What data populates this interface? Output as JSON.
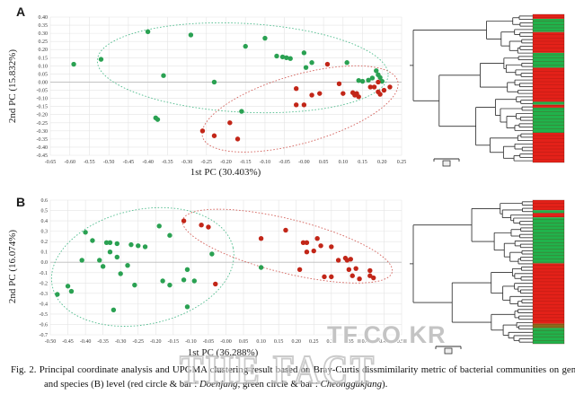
{
  "figure_label": "Fig. 2.",
  "caption": {
    "prefix": "Fig. 2.",
    "body1": " Principal coordinate analysis and UPGMA clustering result based on Bray-Curtis dissmimilarity metric of bacterial communities on genus (A) and species (B) level (red circle & bar : ",
    "italic1": "Doenjang",
    "body2": ", green circle & bar : ",
    "italic2": "Cheonggukjang",
    "suffix": ").",
    "full_text": "Fig. 2. Principal coordinate analysis and UPGMA clustering result based on Bray-Curtis dissmimilarity metric of bacterial communities on genus (A) and species (B) level (red circle & bar : Doenjang, green circle & bar : Cheonggukjang)."
  },
  "watermarks": {
    "site": "TF.CO.KR",
    "brand": "THE FACT"
  },
  "colors": {
    "doenjang": "#c22618",
    "cheonggukjang": "#2aa152",
    "ellipse_red": "#d4625c",
    "ellipse_green": "#52bd8f",
    "bar_red": "#e32119",
    "bar_green": "#21b24b",
    "bar_olive": "#8a6d1b",
    "grid": "#e4e4e4",
    "zero_line": "#bcbcbc",
    "tick_text": "#3a3a3a",
    "tree": "#2f2f2f"
  },
  "chart_data": [
    {
      "panel_label": "A",
      "type": "scatter",
      "level": "genus",
      "xlabel": "1st PC (30.403%)",
      "ylabel": "2nd PC (15.832%)",
      "xlim": [
        -0.65,
        0.25
      ],
      "ylim": [
        -0.45,
        0.4
      ],
      "xticks": [
        "-0.65",
        "-0.60",
        "-0.55",
        "-0.50",
        "-0.45",
        "-0.40",
        "-0.35",
        "-0.30",
        "-0.25",
        "-0.20",
        "-0.15",
        "-0.10",
        "-0.05",
        "-0.00",
        "0.05",
        "0.10",
        "0.15",
        "0.20",
        "0.25"
      ],
      "yticks": [
        "0.40",
        "0.35",
        "0.30",
        "0.25",
        "0.20",
        "0.15",
        "0.10",
        "0.05",
        "0.00",
        "-0.05",
        "-0.10",
        "-0.15",
        "-0.20",
        "-0.25",
        "-0.30",
        "-0.35",
        "-0.40",
        "-0.45"
      ],
      "grid": true,
      "series": [
        {
          "name": "Cheonggukjang",
          "color_key": "cheonggukjang",
          "points": [
            [
              -0.59,
              0.11
            ],
            [
              -0.52,
              0.14
            ],
            [
              -0.4,
              0.31
            ],
            [
              -0.29,
              0.29
            ],
            [
              -0.36,
              0.04
            ],
            [
              -0.23,
              0.0
            ],
            [
              -0.38,
              -0.22
            ],
            [
              -0.375,
              -0.23
            ],
            [
              -0.16,
              -0.18
            ],
            [
              -0.1,
              0.27
            ],
            [
              -0.15,
              0.22
            ],
            [
              -0.07,
              0.16
            ],
            [
              -0.055,
              0.155
            ],
            [
              -0.045,
              0.15
            ],
            [
              -0.035,
              0.145
            ],
            [
              0.0,
              0.18
            ],
            [
              0.02,
              0.12
            ],
            [
              0.005,
              0.09
            ],
            [
              0.11,
              0.12
            ],
            [
              0.14,
              0.01
            ],
            [
              0.15,
              0.005
            ],
            [
              0.165,
              0.012
            ],
            [
              0.175,
              0.025
            ],
            [
              0.185,
              0.07
            ],
            [
              0.19,
              0.045
            ],
            [
              0.195,
              0.028
            ],
            [
              0.2,
              0.005
            ]
          ]
        },
        {
          "name": "Doenjang",
          "color_key": "doenjang",
          "points": [
            [
              -0.26,
              -0.3
            ],
            [
              -0.23,
              -0.33
            ],
            [
              -0.19,
              -0.25
            ],
            [
              -0.17,
              -0.35
            ],
            [
              0.06,
              0.11
            ],
            [
              -0.02,
              -0.04
            ],
            [
              0.02,
              -0.08
            ],
            [
              0.04,
              -0.07
            ],
            [
              0.09,
              -0.01
            ],
            [
              0.1,
              -0.07
            ],
            [
              0.125,
              -0.065
            ],
            [
              0.13,
              -0.08
            ],
            [
              0.135,
              -0.07
            ],
            [
              0.14,
              -0.09
            ],
            [
              0.17,
              -0.03
            ],
            [
              0.18,
              -0.03
            ],
            [
              0.19,
              0.0
            ],
            [
              0.22,
              -0.03
            ],
            [
              -0.02,
              -0.14
            ],
            [
              0.0,
              -0.14
            ],
            [
              0.19,
              -0.06
            ],
            [
              0.195,
              -0.075
            ],
            [
              0.205,
              -0.05
            ]
          ]
        }
      ],
      "ellipses": [
        {
          "group": "Cheonggukjang",
          "color_key": "ellipse_green",
          "cx": -0.157,
          "cy": 0.088,
          "rx": 0.373,
          "ry": 0.273,
          "tilt_deg": 3
        },
        {
          "group": "Doenjang",
          "color_key": "ellipse_red",
          "cx": -0.01,
          "cy": -0.165,
          "rx": 0.26,
          "ry": 0.21,
          "tilt_deg": -16
        }
      ],
      "dendrogram": {
        "type": "dendrogram",
        "leaves": 44,
        "bar_segments": [
          {
            "color": "red",
            "pct": 3
          },
          {
            "color": "green",
            "pct": 9
          },
          {
            "color": "red",
            "pct": 14
          },
          {
            "color": "green",
            "pct": 10
          },
          {
            "color": "red",
            "pct": 23
          },
          {
            "color": "green",
            "pct": 2
          },
          {
            "color": "red",
            "pct": 2
          },
          {
            "color": "green",
            "pct": 17
          },
          {
            "color": "red",
            "pct": 20
          }
        ]
      }
    },
    {
      "panel_label": "B",
      "type": "scatter",
      "level": "species",
      "xlabel": "1st PC (36.288%)",
      "ylabel": "2nd PC (16.074%)",
      "xlim": [
        -0.5,
        0.5
      ],
      "ylim": [
        -0.7,
        0.6
      ],
      "xticks": [
        "-0.50",
        "-0.45",
        "-0.40",
        "-0.35",
        "-0.30",
        "-0.25",
        "-0.20",
        "-0.15",
        "-0.10",
        "-0.05",
        "-0.00",
        "0.05",
        "0.10",
        "0.15",
        "0.20",
        "0.25",
        "0.30",
        "0.35",
        "0.40",
        "0.45",
        "0.50"
      ],
      "yticks": [
        "0.6",
        "0.5",
        "0.4",
        "0.3",
        "0.2",
        "0.1",
        "0.0",
        "-0.1",
        "-0.2",
        "-0.3",
        "-0.4",
        "-0.5",
        "-0.6",
        "-0.7"
      ],
      "grid": true,
      "series": [
        {
          "name": "Cheonggukjang",
          "color_key": "cheonggukjang",
          "points": [
            [
              -0.48,
              -0.31
            ],
            [
              -0.44,
              -0.28
            ],
            [
              -0.45,
              -0.23
            ],
            [
              -0.41,
              0.02
            ],
            [
              -0.38,
              0.21
            ],
            [
              -0.4,
              0.29
            ],
            [
              -0.34,
              0.19
            ],
            [
              -0.33,
              0.19
            ],
            [
              -0.31,
              0.18
            ],
            [
              -0.33,
              0.1
            ],
            [
              -0.31,
              0.05
            ],
            [
              -0.36,
              0.02
            ],
            [
              -0.35,
              -0.04
            ],
            [
              -0.28,
              -0.03
            ],
            [
              -0.3,
              -0.11
            ],
            [
              -0.27,
              0.17
            ],
            [
              -0.25,
              0.16
            ],
            [
              -0.23,
              0.15
            ],
            [
              -0.19,
              0.35
            ],
            [
              -0.16,
              0.26
            ],
            [
              -0.26,
              -0.22
            ],
            [
              -0.18,
              -0.18
            ],
            [
              -0.16,
              -0.22
            ],
            [
              -0.32,
              -0.46
            ],
            [
              -0.11,
              -0.07
            ],
            [
              -0.12,
              -0.17
            ],
            [
              -0.09,
              -0.18
            ],
            [
              -0.11,
              -0.43
            ],
            [
              -0.04,
              0.08
            ],
            [
              0.1,
              -0.05
            ]
          ]
        },
        {
          "name": "Doenjang",
          "color_key": "doenjang",
          "points": [
            [
              -0.12,
              0.4
            ],
            [
              -0.07,
              0.36
            ],
            [
              -0.05,
              0.34
            ],
            [
              0.1,
              0.23
            ],
            [
              0.17,
              0.31
            ],
            [
              0.22,
              0.19
            ],
            [
              0.23,
              0.19
            ],
            [
              0.26,
              0.23
            ],
            [
              0.23,
              0.1
            ],
            [
              0.25,
              0.11
            ],
            [
              0.27,
              0.16
            ],
            [
              0.3,
              0.15
            ],
            [
              0.32,
              0.02
            ],
            [
              0.34,
              0.04
            ],
            [
              0.345,
              0.02
            ],
            [
              0.355,
              0.03
            ],
            [
              0.35,
              -0.07
            ],
            [
              0.37,
              -0.06
            ],
            [
              0.36,
              -0.13
            ],
            [
              0.41,
              -0.08
            ],
            [
              0.41,
              -0.13
            ],
            [
              0.42,
              -0.15
            ],
            [
              0.28,
              -0.14
            ],
            [
              0.3,
              -0.14
            ],
            [
              0.21,
              -0.07
            ],
            [
              -0.03,
              -0.21
            ],
            [
              0.38,
              -0.16
            ]
          ]
        }
      ],
      "ellipses": [
        {
          "group": "Cheonggukjang",
          "color_key": "ellipse_green",
          "cx": -0.237,
          "cy": -0.045,
          "rx": 0.263,
          "ry": 0.554,
          "tilt_deg": -12
        },
        {
          "group": "Doenjang",
          "color_key": "ellipse_red",
          "cx": 0.175,
          "cy": 0.156,
          "rx": 0.307,
          "ry": 0.26,
          "tilt_deg": 14
        }
      ],
      "dendrogram": {
        "type": "dendrogram",
        "leaves": 44,
        "bar_segments": [
          {
            "color": "red",
            "pct": 7
          },
          {
            "color": "green",
            "pct": 2
          },
          {
            "color": "red",
            "pct": 3
          },
          {
            "color": "green",
            "pct": 32
          },
          {
            "color": "red",
            "pct": 42
          },
          {
            "color": "olive",
            "pct": 3
          },
          {
            "color": "green",
            "pct": 11
          }
        ]
      }
    }
  ]
}
